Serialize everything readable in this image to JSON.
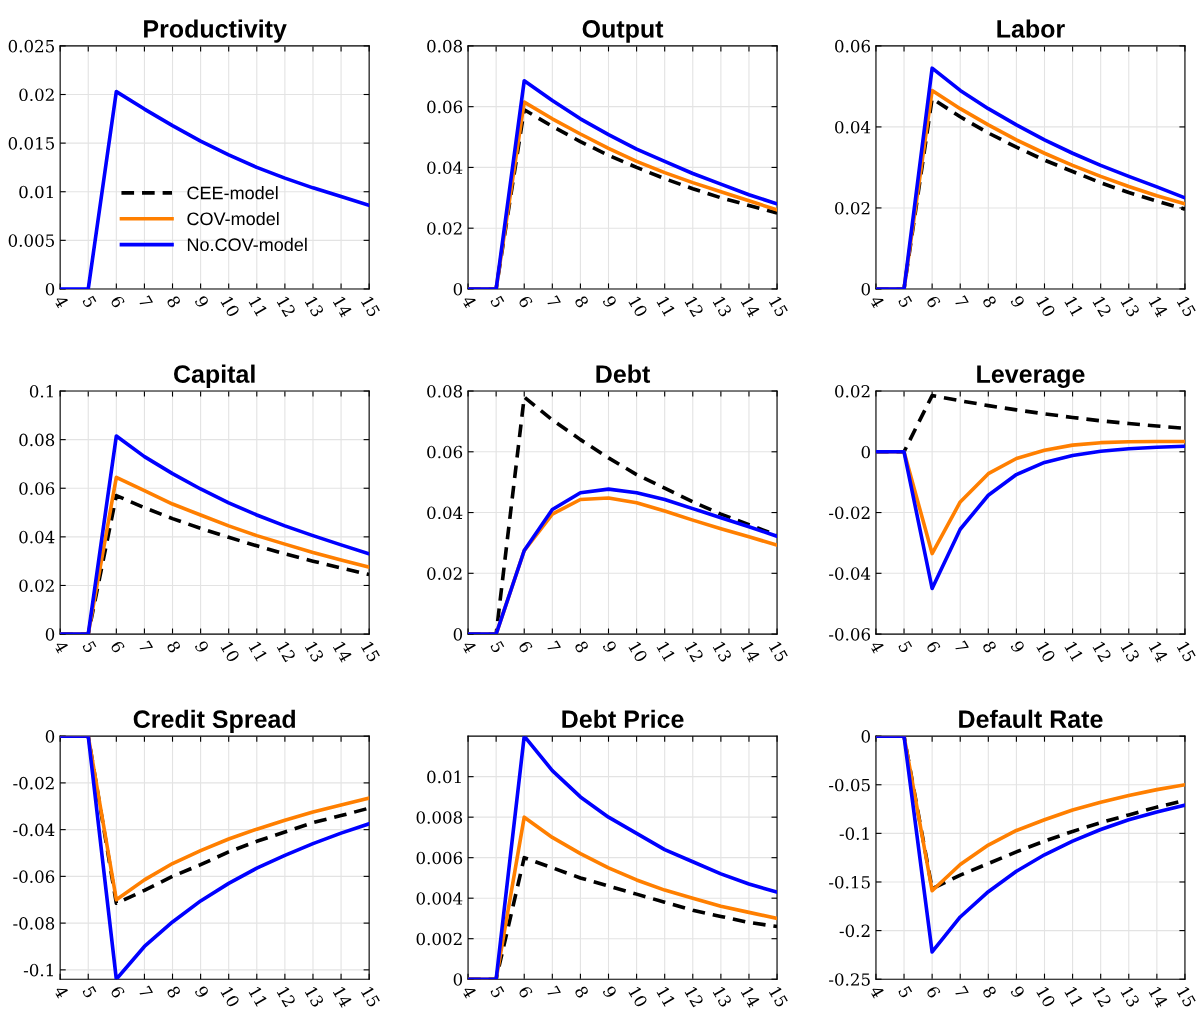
{
  "chart_data": [
    {
      "type": "line",
      "title": "Productivity",
      "x": [
        4,
        5,
        6,
        7,
        8,
        9,
        10,
        11,
        12,
        13,
        14,
        15
      ],
      "xlim": [
        4,
        15
      ],
      "xticks": [
        4,
        5,
        6,
        7,
        8,
        9,
        10,
        11,
        12,
        13,
        14,
        15
      ],
      "ylim": [
        0,
        0.025
      ],
      "yticks": [
        0,
        0.005,
        0.01,
        0.015,
        0.02,
        0.025
      ],
      "grid": true,
      "legend": "bottom",
      "series": [
        {
          "name": "CEE-model",
          "color": "#000000",
          "line_style": "dashed",
          "values": [
            null,
            null,
            null,
            null,
            null,
            null,
            null,
            null,
            null,
            null,
            null,
            null
          ]
        },
        {
          "name": "COV-model",
          "color": "#ff7f00",
          "line_style": "solid",
          "values": [
            null,
            null,
            null,
            null,
            null,
            null,
            null,
            null,
            null,
            null,
            null,
            null
          ]
        },
        {
          "name": "No.COV-model",
          "color": "#0000ff",
          "line_style": "solid",
          "values": [
            0,
            0,
            0.0203,
            0.0185,
            0.0168,
            0.0152,
            0.0138,
            0.0125,
            0.0114,
            0.0104,
            0.0095,
            0.0086
          ]
        }
      ]
    },
    {
      "type": "line",
      "title": "Output",
      "x": [
        4,
        5,
        6,
        7,
        8,
        9,
        10,
        11,
        12,
        13,
        14,
        15
      ],
      "xlim": [
        4,
        15
      ],
      "xticks": [
        4,
        5,
        6,
        7,
        8,
        9,
        10,
        11,
        12,
        13,
        14,
        15
      ],
      "ylim": [
        0,
        0.08
      ],
      "yticks": [
        0,
        0.02,
        0.04,
        0.06,
        0.08
      ],
      "grid": true,
      "series": [
        {
          "color": "#000000",
          "line_style": "dashed",
          "values": [
            0,
            0,
            0.059,
            0.0535,
            0.0485,
            0.044,
            0.04,
            0.0363,
            0.033,
            0.03,
            0.0275,
            0.025
          ]
        },
        {
          "color": "#ff7f00",
          "line_style": "solid",
          "values": [
            0,
            0,
            0.0615,
            0.056,
            0.051,
            0.0463,
            0.042,
            0.0383,
            0.035,
            0.032,
            0.029,
            0.026
          ]
        },
        {
          "color": "#0000ff",
          "line_style": "solid",
          "values": [
            0,
            0,
            0.0685,
            0.062,
            0.056,
            0.0508,
            0.046,
            0.042,
            0.038,
            0.0345,
            0.031,
            0.028
          ]
        }
      ]
    },
    {
      "type": "line",
      "title": "Labor",
      "x": [
        4,
        5,
        6,
        7,
        8,
        9,
        10,
        11,
        12,
        13,
        14,
        15
      ],
      "xlim": [
        4,
        15
      ],
      "xticks": [
        4,
        5,
        6,
        7,
        8,
        9,
        10,
        11,
        12,
        13,
        14,
        15
      ],
      "ylim": [
        0,
        0.06
      ],
      "yticks": [
        0,
        0.02,
        0.04,
        0.06
      ],
      "grid": true,
      "series": [
        {
          "color": "#000000",
          "line_style": "dashed",
          "values": [
            0,
            0,
            0.047,
            0.0425,
            0.0385,
            0.035,
            0.0318,
            0.029,
            0.0262,
            0.0238,
            0.0217,
            0.0197
          ]
        },
        {
          "color": "#ff7f00",
          "line_style": "solid",
          "values": [
            0,
            0,
            0.049,
            0.0445,
            0.0405,
            0.0368,
            0.0335,
            0.0305,
            0.0278,
            0.0253,
            0.023,
            0.021
          ]
        },
        {
          "color": "#0000ff",
          "line_style": "solid",
          "values": [
            0,
            0,
            0.0545,
            0.049,
            0.0445,
            0.0405,
            0.0368,
            0.0335,
            0.0305,
            0.0278,
            0.0252,
            0.0225
          ]
        }
      ]
    },
    {
      "type": "line",
      "title": "Capital",
      "x": [
        4,
        5,
        6,
        7,
        8,
        9,
        10,
        11,
        12,
        13,
        14,
        15
      ],
      "xlim": [
        4,
        15
      ],
      "xticks": [
        4,
        5,
        6,
        7,
        8,
        9,
        10,
        11,
        12,
        13,
        14,
        15
      ],
      "ylim": [
        0,
        0.1
      ],
      "yticks": [
        0,
        0.02,
        0.04,
        0.06,
        0.08,
        0.1
      ],
      "grid": true,
      "series": [
        {
          "color": "#000000",
          "line_style": "dashed",
          "values": [
            0,
            0,
            0.057,
            0.052,
            0.0475,
            0.0435,
            0.0398,
            0.0363,
            0.033,
            0.03,
            0.0272,
            0.0245
          ]
        },
        {
          "color": "#ff7f00",
          "line_style": "solid",
          "values": [
            0,
            0,
            0.0645,
            0.059,
            0.0535,
            0.049,
            0.0445,
            0.0405,
            0.037,
            0.0336,
            0.0305,
            0.0275
          ]
        },
        {
          "color": "#0000ff",
          "line_style": "solid",
          "values": [
            0,
            0,
            0.0815,
            0.073,
            0.066,
            0.0597,
            0.054,
            0.049,
            0.0445,
            0.0405,
            0.0367,
            0.033
          ]
        }
      ]
    },
    {
      "type": "line",
      "title": "Debt",
      "x": [
        4,
        5,
        6,
        7,
        8,
        9,
        10,
        11,
        12,
        13,
        14,
        15
      ],
      "xlim": [
        4,
        15
      ],
      "xticks": [
        4,
        5,
        6,
        7,
        8,
        9,
        10,
        11,
        12,
        13,
        14,
        15
      ],
      "ylim": [
        0,
        0.08
      ],
      "yticks": [
        0,
        0.02,
        0.04,
        0.06,
        0.08
      ],
      "grid": true,
      "series": [
        {
          "color": "#000000",
          "line_style": "dashed",
          "values": [
            0,
            0,
            0.078,
            0.0705,
            0.064,
            0.058,
            0.0525,
            0.048,
            0.0435,
            0.0395,
            0.036,
            0.0325
          ]
        },
        {
          "color": "#ff7f00",
          "line_style": "solid",
          "values": [
            0,
            0,
            0.0275,
            0.0395,
            0.0443,
            0.0448,
            0.0432,
            0.0405,
            0.0375,
            0.0347,
            0.032,
            0.0293
          ]
        },
        {
          "color": "#0000ff",
          "line_style": "solid",
          "values": [
            0,
            0,
            0.0275,
            0.041,
            0.0465,
            0.0477,
            0.0465,
            0.0443,
            0.0413,
            0.0383,
            0.0353,
            0.0322
          ]
        }
      ]
    },
    {
      "type": "line",
      "title": "Leverage",
      "x": [
        4,
        5,
        6,
        7,
        8,
        9,
        10,
        11,
        12,
        13,
        14,
        15
      ],
      "xlim": [
        4,
        15
      ],
      "xticks": [
        4,
        5,
        6,
        7,
        8,
        9,
        10,
        11,
        12,
        13,
        14,
        15
      ],
      "ylim": [
        -0.06,
        0.02
      ],
      "yticks": [
        -0.06,
        -0.04,
        -0.02,
        0,
        0.02
      ],
      "grid": true,
      "series": [
        {
          "color": "#000000",
          "line_style": "dashed",
          "values": [
            0,
            0,
            0.0185,
            0.0168,
            0.0152,
            0.0138,
            0.0125,
            0.0113,
            0.0102,
            0.0093,
            0.0085,
            0.0077
          ]
        },
        {
          "color": "#ff7f00",
          "line_style": "solid",
          "values": [
            0,
            0,
            -0.0335,
            -0.0165,
            -0.0072,
            -0.0022,
            0.0005,
            0.0022,
            0.003,
            0.0033,
            0.0034,
            0.0034
          ]
        },
        {
          "color": "#0000ff",
          "line_style": "solid",
          "values": [
            0,
            0,
            -0.045,
            -0.0255,
            -0.0143,
            -0.0075,
            -0.0035,
            -0.0012,
            0.0002,
            0.001,
            0.0015,
            0.0018
          ]
        }
      ]
    },
    {
      "type": "line",
      "title": "Credit Spread",
      "x": [
        4,
        5,
        6,
        7,
        8,
        9,
        10,
        11,
        12,
        13,
        14,
        15
      ],
      "xlim": [
        4,
        15
      ],
      "xticks": [
        4,
        5,
        6,
        7,
        8,
        9,
        10,
        11,
        12,
        13,
        14,
        15
      ],
      "ylim": [
        -0.104,
        0
      ],
      "yticks": [
        -0.1,
        -0.08,
        -0.06,
        -0.04,
        -0.02,
        0
      ],
      "grid": true,
      "series": [
        {
          "color": "#000000",
          "line_style": "dashed",
          "values": [
            0,
            0,
            -0.0715,
            -0.066,
            -0.06,
            -0.055,
            -0.0495,
            -0.045,
            -0.041,
            -0.037,
            -0.034,
            -0.0308
          ]
        },
        {
          "color": "#ff7f00",
          "line_style": "solid",
          "values": [
            0,
            0,
            -0.07,
            -0.0615,
            -0.0545,
            -0.049,
            -0.044,
            -0.0398,
            -0.036,
            -0.0325,
            -0.0295,
            -0.0265
          ]
        },
        {
          "color": "#0000ff",
          "line_style": "solid",
          "values": [
            0,
            0,
            -0.104,
            -0.09,
            -0.0795,
            -0.0705,
            -0.063,
            -0.0565,
            -0.051,
            -0.046,
            -0.0415,
            -0.0375
          ]
        }
      ]
    },
    {
      "type": "line",
      "title": "Debt Price",
      "x": [
        4,
        5,
        6,
        7,
        8,
        9,
        10,
        11,
        12,
        13,
        14,
        15
      ],
      "xlim": [
        4,
        15
      ],
      "xticks": [
        4,
        5,
        6,
        7,
        8,
        9,
        10,
        11,
        12,
        13,
        14,
        15
      ],
      "ylim": [
        0,
        0.012
      ],
      "yticks": [
        0,
        0.002,
        0.004,
        0.006,
        0.008,
        0.01
      ],
      "grid": true,
      "series": [
        {
          "color": "#000000",
          "line_style": "dashed",
          "values": [
            0,
            0,
            0.006,
            0.0055,
            0.005,
            0.0046,
            0.0042,
            0.0038,
            0.0034,
            0.0031,
            0.0028,
            0.0026
          ]
        },
        {
          "color": "#ff7f00",
          "line_style": "solid",
          "values": [
            0,
            0,
            0.008,
            0.007,
            0.0062,
            0.0055,
            0.0049,
            0.0044,
            0.004,
            0.0036,
            0.0033,
            0.003
          ]
        },
        {
          "color": "#0000ff",
          "line_style": "solid",
          "values": [
            0,
            0,
            0.012,
            0.0103,
            0.009,
            0.008,
            0.0072,
            0.0064,
            0.0058,
            0.0052,
            0.0047,
            0.0043
          ]
        }
      ]
    },
    {
      "type": "line",
      "title": "Default Rate",
      "x": [
        4,
        5,
        6,
        7,
        8,
        9,
        10,
        11,
        12,
        13,
        14,
        15
      ],
      "xlim": [
        4,
        15
      ],
      "xticks": [
        4,
        5,
        6,
        7,
        8,
        9,
        10,
        11,
        12,
        13,
        14,
        15
      ],
      "ylim": [
        -0.25,
        0
      ],
      "yticks": [
        -0.25,
        -0.2,
        -0.15,
        -0.1,
        -0.05,
        0
      ],
      "grid": true,
      "series": [
        {
          "color": "#000000",
          "line_style": "dashed",
          "values": [
            0,
            0,
            -0.157,
            -0.143,
            -0.131,
            -0.119,
            -0.108,
            -0.098,
            -0.089,
            -0.081,
            -0.073,
            -0.066
          ]
        },
        {
          "color": "#ff7f00",
          "line_style": "solid",
          "values": [
            0,
            0,
            -0.159,
            -0.132,
            -0.112,
            -0.097,
            -0.086,
            -0.076,
            -0.068,
            -0.061,
            -0.055,
            -0.05
          ]
        },
        {
          "color": "#0000ff",
          "line_style": "solid",
          "values": [
            0,
            0,
            -0.222,
            -0.186,
            -0.16,
            -0.139,
            -0.122,
            -0.108,
            -0.096,
            -0.086,
            -0.078,
            -0.071
          ]
        }
      ]
    }
  ]
}
